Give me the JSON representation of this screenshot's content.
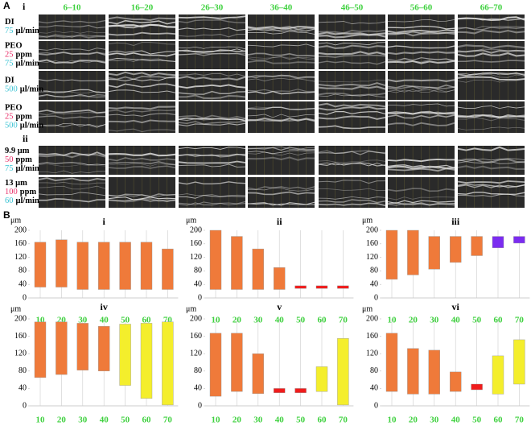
{
  "panel_a": {
    "label": "A",
    "section_labels": [
      "i",
      "ii"
    ],
    "columns": [
      "6–10",
      "16–20",
      "26–30",
      "36–40",
      "46–50",
      "56–60",
      "66–70"
    ],
    "rows": [
      {
        "lines": [
          {
            "text": "DI"
          },
          {
            "num": "75",
            "unit": "μl/min",
            "color": "#3ac3d3"
          }
        ]
      },
      {
        "lines": [
          {
            "text": "PEO"
          },
          {
            "num": "25",
            "unit": "ppm",
            "color": "#e8306a"
          },
          {
            "num": "75",
            "unit": "μl/min",
            "color": "#3ac3d3"
          }
        ]
      },
      {
        "lines": [
          {
            "text": "DI"
          },
          {
            "num": "500",
            "unit": "μl/min",
            "color": "#3ac3d3"
          }
        ]
      },
      {
        "lines": [
          {
            "text": "PEO"
          },
          {
            "num": "25",
            "unit": "ppm",
            "color": "#e8306a"
          },
          {
            "num": "500",
            "unit": "μl/min",
            "color": "#3ac3d3"
          }
        ]
      },
      {
        "lines": [
          {
            "text": "9.9 μm"
          },
          {
            "num": "50",
            "unit": "ppm",
            "color": "#e8306a"
          },
          {
            "num": "75",
            "unit": "μl/min",
            "color": "#3ac3d3"
          }
        ]
      },
      {
        "lines": [
          {
            "text": "13 μm"
          },
          {
            "num": "100",
            "unit": "ppm",
            "color": "#e8306a"
          },
          {
            "num": "60",
            "unit": "μl/min",
            "color": "#3ac3d3"
          }
        ]
      }
    ]
  },
  "panel_b_label": "B",
  "chart_data": [
    {
      "type": "floating_bar",
      "title": "i",
      "y_unit": "μm",
      "categories": [
        "10",
        "20",
        "30",
        "40",
        "50",
        "60",
        "70"
      ],
      "ranges": [
        [
          32,
          165
        ],
        [
          32,
          172
        ],
        [
          25,
          165
        ],
        [
          25,
          165
        ],
        [
          25,
          165
        ],
        [
          25,
          165
        ],
        [
          25,
          145
        ]
      ],
      "colors": [
        "#ef7a3a",
        "#ef7a3a",
        "#ef7a3a",
        "#ef7a3a",
        "#ef7a3a",
        "#ef7a3a",
        "#ef7a3a"
      ],
      "ylim": [
        0,
        200
      ],
      "yticks": [
        0,
        40,
        80,
        120,
        160,
        200
      ]
    },
    {
      "type": "floating_bar",
      "title": "ii",
      "y_unit": "μm",
      "categories": [
        "10",
        "20",
        "30",
        "40",
        "50",
        "60",
        "70"
      ],
      "ranges": [
        [
          25,
          200
        ],
        [
          25,
          182
        ],
        [
          25,
          145
        ],
        [
          25,
          90
        ],
        [
          28,
          36
        ],
        [
          28,
          36
        ],
        [
          28,
          36
        ]
      ],
      "colors": [
        "#ef7a3a",
        "#ef7a3a",
        "#ef7a3a",
        "#ef7a3a",
        "#f01c1c",
        "#f01c1c",
        "#f01c1c"
      ],
      "ylim": [
        0,
        200
      ],
      "yticks": [
        0,
        40,
        80,
        120,
        160,
        200
      ]
    },
    {
      "type": "floating_bar",
      "title": "iii",
      "y_unit": "μm",
      "categories": [
        "10",
        "20",
        "30",
        "40",
        "50",
        "60",
        "70"
      ],
      "ranges": [
        [
          55,
          200
        ],
        [
          68,
          200
        ],
        [
          85,
          182
        ],
        [
          105,
          182
        ],
        [
          125,
          182
        ],
        [
          148,
          182
        ],
        [
          162,
          182
        ]
      ],
      "colors": [
        "#ef7a3a",
        "#ef7a3a",
        "#ef7a3a",
        "#ef7a3a",
        "#ef7a3a",
        "#7b2cf0",
        "#7b2cf0"
      ],
      "ylim": [
        0,
        200
      ],
      "yticks": [
        0,
        40,
        80,
        120,
        160,
        200
      ]
    },
    {
      "type": "floating_bar",
      "title": "iv",
      "y_unit": "μm",
      "categories": [
        "10",
        "20",
        "30",
        "40",
        "50",
        "60",
        "70"
      ],
      "ranges": [
        [
          65,
          193
        ],
        [
          72,
          193
        ],
        [
          82,
          190
        ],
        [
          80,
          183
        ],
        [
          47,
          188
        ],
        [
          17,
          190
        ],
        [
          2,
          193
        ]
      ],
      "colors": [
        "#ef7a3a",
        "#ef7a3a",
        "#ef7a3a",
        "#ef7a3a",
        "#f4ee2c",
        "#f4ee2c",
        "#f4ee2c"
      ],
      "ylim": [
        0,
        200
      ],
      "yticks": [
        0,
        40,
        80,
        120,
        160,
        200
      ]
    },
    {
      "type": "floating_bar",
      "title": "v",
      "y_unit": "μm",
      "categories": [
        "10",
        "20",
        "30",
        "40",
        "50",
        "60",
        "70"
      ],
      "ranges": [
        [
          22,
          167
        ],
        [
          33,
          167
        ],
        [
          28,
          120
        ],
        [
          30,
          40
        ],
        [
          30,
          40
        ],
        [
          33,
          90
        ],
        [
          2,
          155
        ]
      ],
      "colors": [
        "#ef7a3a",
        "#ef7a3a",
        "#ef7a3a",
        "#f01c1c",
        "#f01c1c",
        "#f4ee2c",
        "#f4ee2c"
      ],
      "ylim": [
        0,
        200
      ],
      "yticks": [
        0,
        40,
        80,
        120,
        160,
        200
      ]
    },
    {
      "type": "floating_bar",
      "title": "vi",
      "y_unit": "μm",
      "categories": [
        "10",
        "20",
        "30",
        "40",
        "50",
        "60",
        "70"
      ],
      "ranges": [
        [
          33,
          167
        ],
        [
          27,
          132
        ],
        [
          27,
          128
        ],
        [
          33,
          78
        ],
        [
          37,
          50
        ],
        [
          27,
          115
        ],
        [
          50,
          152
        ]
      ],
      "colors": [
        "#ef7a3a",
        "#ef7a3a",
        "#ef7a3a",
        "#ef7a3a",
        "#f01c1c",
        "#f4ee2c",
        "#f4ee2c"
      ],
      "ylim": [
        0,
        200
      ],
      "yticks": [
        0,
        40,
        80,
        120,
        160,
        200
      ]
    }
  ]
}
